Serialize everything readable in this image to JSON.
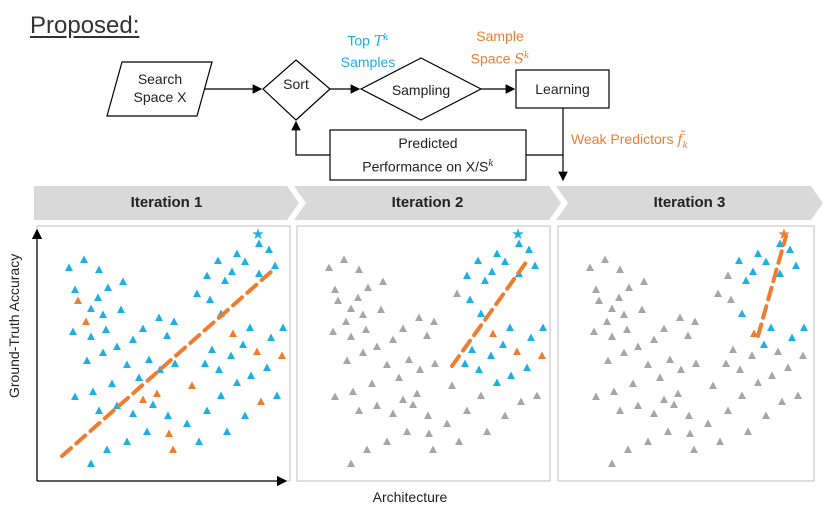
{
  "title": "Proposed:",
  "flow": {
    "search_space": [
      "Search",
      "Space X"
    ],
    "sort": "Sort",
    "sampling": "Sampling",
    "learning": "Learning",
    "predicted": [
      "Predicted",
      "Performance on X/S"
    ],
    "predicted_sup": "k",
    "top_samples": [
      "Top ",
      "T",
      "k",
      "Samples"
    ],
    "sample_space": [
      "Sample",
      "Space ",
      "S",
      "k"
    ],
    "weak_predictors": "Weak Predictors ",
    "weak_symbol": "f̃",
    "weak_sub": "k"
  },
  "iterations": [
    "Iteration 1",
    "Iteration 2",
    "Iteration 3"
  ],
  "axes": {
    "xlabel": "Architecture",
    "ylabel": "Ground-Truth Accuracy"
  },
  "colors": {
    "cyan": "#1cb0e6",
    "orange": "#ed7d31",
    "gray": "#a6a6a6",
    "banner": "#d9d9d9"
  }
}
